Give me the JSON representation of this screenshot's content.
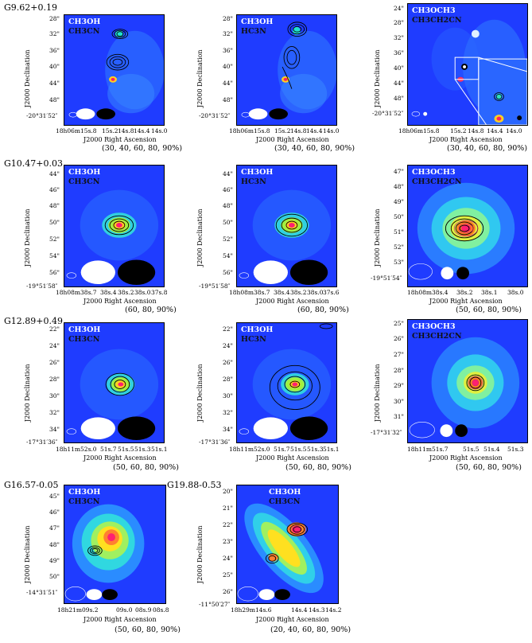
{
  "common": {
    "xlabel": "J2000 Right Ascension",
    "ylabel": "J2000 Declination"
  },
  "panels": [
    {
      "source": "G9.62+0.19",
      "mol1": "CH3OH",
      "mol2": "CH3CN",
      "levels": "(30, 40, 60, 80, 90%)",
      "yticks": [
        "28\"",
        "32\"",
        "36\"",
        "40\"",
        "44\"",
        "48\"",
        "-20°31′52″"
      ],
      "xticks": [
        "18h06m15s.8",
        "15s.2",
        "14s.8",
        "14s.4",
        "14s.0"
      ]
    },
    {
      "source": "",
      "mol1": "CH3OH",
      "mol2": "HC3N",
      "levels": "(30, 40, 60, 80, 90%)",
      "yticks": [
        "28\"",
        "32\"",
        "36\"",
        "40\"",
        "44\"",
        "48\"",
        "-20°31′52″"
      ],
      "xticks": [
        "18h06m15s.8",
        "15s.2",
        "14s.8",
        "14s.4",
        "14s.0"
      ]
    },
    {
      "source": "",
      "mol1": "CH3OCH3",
      "mol2": "CH3CH2CN",
      "levels": "(30, 40, 60, 80, 90%)",
      "yticks": [
        "24\"",
        "28\"",
        "32\"",
        "36\"",
        "40\"",
        "44\"",
        "48\"",
        "-20°31′52″"
      ],
      "xticks": [
        "18h06m15s.8",
        "15s.2",
        "14s.8",
        "14s.4",
        "14s.0"
      ]
    },
    {
      "source": "G10.47+0.03",
      "mol1": "CH3OH",
      "mol2": "CH3CN",
      "levels": "(60, 80, 90%)",
      "yticks": [
        "44\"",
        "46\"",
        "48\"",
        "50\"",
        "52\"",
        "54\"",
        "56\"",
        "-19°51′58″"
      ],
      "xticks": [
        "18h08m38s.7",
        "38s.4",
        "38s.2",
        "38s.0",
        "37s.8"
      ]
    },
    {
      "source": "",
      "mol1": "CH3OH",
      "mol2": "HC3N",
      "levels": "(60, 80, 90%)",
      "yticks": [
        "44\"",
        "46\"",
        "48\"",
        "50\"",
        "52\"",
        "54\"",
        "56\"",
        "-19°51′58″"
      ],
      "xticks": [
        "18h08m38s.7",
        "38s.4",
        "38s.2",
        "38s.0",
        "37s.6"
      ]
    },
    {
      "source": "",
      "mol1": "CH3OCH3",
      "mol2": "CH3CH2CN",
      "levels": "(50, 60, 80, 90%)",
      "yticks": [
        "47\"",
        "48\"",
        "49\"",
        "50\"",
        "51\"",
        "52\"",
        "53\"",
        "-19°51′54″"
      ],
      "xticks": [
        "18h08m38s.4",
        "38s.2",
        "38s.1",
        "38s.0"
      ]
    },
    {
      "source": "G12.89+0.49",
      "mol1": "CH3OH",
      "mol2": "CH3CN",
      "levels": "(50, 60, 80, 90%)",
      "yticks": [
        "22\"",
        "24\"",
        "26\"",
        "28\"",
        "30\"",
        "32\"",
        "34\"",
        "-17°31′36″"
      ],
      "xticks": [
        "18h11m52s.0",
        "51s.7",
        "51s.5",
        "51s.3",
        "51s.1"
      ]
    },
    {
      "source": "",
      "mol1": "CH3OH",
      "mol2": "HC3N",
      "levels": "(50, 60, 80, 90%)",
      "yticks": [
        "22\"",
        "24\"",
        "26\"",
        "28\"",
        "30\"",
        "32\"",
        "34\"",
        "-17°31′36″"
      ],
      "xticks": [
        "18h11m52s.0",
        "51s.7",
        "51s.5",
        "51s.3",
        "51s.1"
      ]
    },
    {
      "source": "",
      "mol1": "CH3OCH3",
      "mol2": "CH3CH2CN",
      "levels": "(50, 60, 80, 90%)",
      "yticks": [
        "25\"",
        "26\"",
        "27\"",
        "28\"",
        "29\"",
        "30\"",
        "31\"",
        "-17°31′32″"
      ],
      "xticks": [
        "18h11m51s.7",
        "51s.5",
        "51s.4",
        "51s.3"
      ]
    },
    {
      "source": "G16.57-0.05",
      "mol1": "CH3OH",
      "mol2": "CH3CN",
      "levels": "(50, 60, 80, 90%)",
      "yticks": [
        "45\"",
        "46\"",
        "47\"",
        "48\"",
        "49\"",
        "50\"",
        "-14°31′51″"
      ],
      "xticks": [
        "18h21m09s.2",
        "09s.0",
        "08s.9",
        "08s.8"
      ]
    },
    {
      "source": "G19.88-0.53",
      "mol1": "CH3OH",
      "mol2": "CH3CN",
      "levels": "(20, 40, 60, 80, 90%)",
      "yticks": [
        "20\"",
        "21\"",
        "22\"",
        "23\"",
        "24\"",
        "25\"",
        "26\"",
        "-11°50′27″"
      ],
      "xticks": [
        "18h29m14s.6",
        "14s.4",
        "14s.3",
        "14s.2"
      ]
    }
  ]
}
